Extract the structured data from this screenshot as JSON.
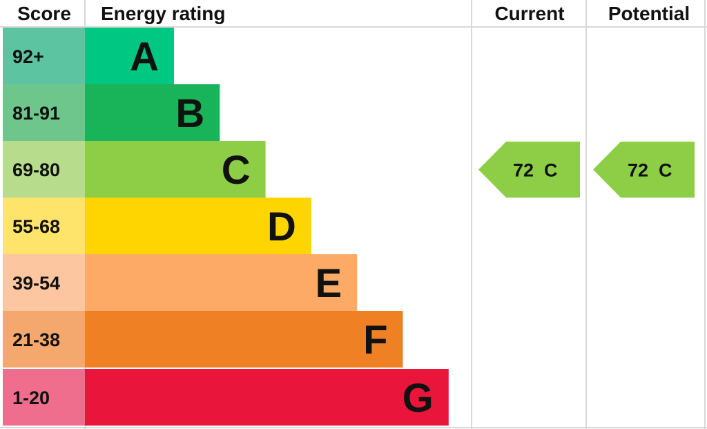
{
  "chart_data": {
    "type": "bar",
    "headers": {
      "score": "Score",
      "rating": "Energy rating",
      "current": "Current",
      "potential": "Potential"
    },
    "bands": [
      {
        "letter": "A",
        "range": "92+",
        "color": "#00c781",
        "score_color": "#5dc4a2"
      },
      {
        "letter": "B",
        "range": "81-91",
        "color": "#19b459",
        "score_color": "#6ec68c"
      },
      {
        "letter": "C",
        "range": "69-80",
        "color": "#8dce46",
        "score_color": "#b7dd8c"
      },
      {
        "letter": "D",
        "range": "55-68",
        "color": "#ffd500",
        "score_color": "#ffe46c"
      },
      {
        "letter": "E",
        "range": "39-54",
        "color": "#fcaa65",
        "score_color": "#fcc7a0"
      },
      {
        "letter": "F",
        "range": "21-38",
        "color": "#ef8023",
        "score_color": "#f4a86e"
      },
      {
        "letter": "G",
        "range": "1-20",
        "color": "#e9153b",
        "score_color": "#ef6e8e"
      }
    ],
    "current": {
      "value": 72,
      "band": "C",
      "label": "72  C"
    },
    "potential": {
      "value": 72,
      "band": "C",
      "label": "72  C"
    }
  }
}
